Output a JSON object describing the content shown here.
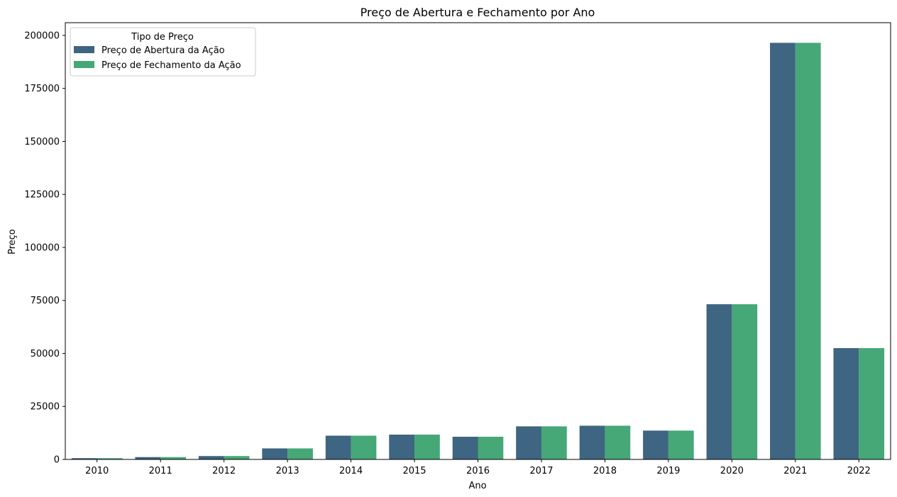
{
  "chart_data": {
    "type": "bar",
    "title": "Preço de Abertura e Fechamento por Ano",
    "xlabel": "Ano",
    "ylabel": "Preço",
    "categories": [
      "2010",
      "2011",
      "2012",
      "2013",
      "2014",
      "2015",
      "2016",
      "2017",
      "2018",
      "2019",
      "2020",
      "2021",
      "2022"
    ],
    "ylim": [
      0,
      206000
    ],
    "yticks": [
      0,
      25000,
      50000,
      75000,
      100000,
      125000,
      150000,
      175000,
      200000
    ],
    "grid": false,
    "legend": {
      "title": "Tipo de Preço",
      "placement": "top-left"
    },
    "series": [
      {
        "name": "Preço de Abertura da Ação",
        "color": "#3e6581",
        "values": [
          600,
          1100,
          1600,
          5200,
          11200,
          11700,
          10700,
          15600,
          15900,
          13600,
          73200,
          196500,
          52500
        ]
      },
      {
        "name": "Preço de Fechamento da Ação",
        "color": "#45a876",
        "values": [
          600,
          1100,
          1600,
          5200,
          11200,
          11700,
          10700,
          15600,
          15900,
          13600,
          73200,
          196500,
          52500
        ]
      }
    ]
  }
}
